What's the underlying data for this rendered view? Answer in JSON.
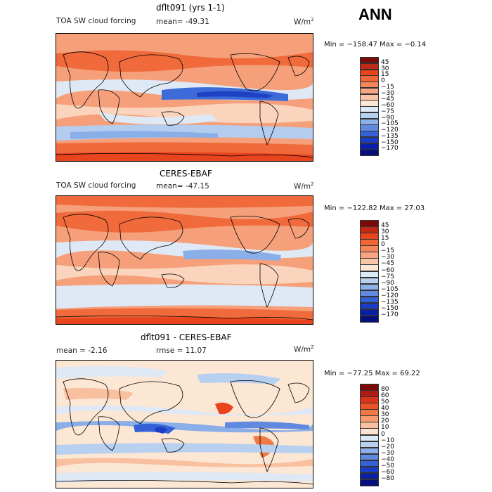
{
  "header": {
    "season": "ANN"
  },
  "panels": [
    {
      "id": "model",
      "title": "dflt091 (yrs 1-1)",
      "left_label": "TOA SW cloud forcing",
      "stat1": "mean= -49.31",
      "units": "W/m",
      "units_sup": "2",
      "minmax": "Min = −158.47 Max =  −0.14",
      "colorbar": {
        "labels": [
          "45",
          "30",
          "15",
          "0",
          "−15",
          "−30",
          "−45",
          "−60",
          "−75",
          "−90",
          "−105",
          "−120",
          "−135",
          "−150",
          "−170"
        ],
        "colors": [
          "#7a0a0a",
          "#c02a14",
          "#e8441e",
          "#f06636",
          "#f5865a",
          "#f7a582",
          "#fac4a7",
          "#fce6d4",
          "#dce9f6",
          "#b8d0f0",
          "#8cb0ea",
          "#5f8ae0",
          "#3462d6",
          "#1a3dc6",
          "#0a1fa8",
          "#06107a"
        ]
      }
    },
    {
      "id": "obs",
      "title": "CERES-EBAF",
      "left_label": "TOA SW cloud forcing",
      "stat1": "mean= -47.15",
      "units": "W/m",
      "units_sup": "2",
      "minmax": "Min = −122.82 Max =  27.03",
      "colorbar": {
        "labels": [
          "45",
          "30",
          "15",
          "0",
          "−15",
          "−30",
          "−45",
          "−60",
          "−75",
          "−90",
          "−105",
          "−120",
          "−135",
          "−150",
          "−170"
        ],
        "colors": [
          "#7a0a0a",
          "#c02a14",
          "#e8441e",
          "#f06636",
          "#f5865a",
          "#f7a582",
          "#fac4a7",
          "#fce6d4",
          "#dce9f6",
          "#b8d0f0",
          "#8cb0ea",
          "#5f8ae0",
          "#3462d6",
          "#1a3dc6",
          "#0a1fa8",
          "#06107a"
        ]
      }
    },
    {
      "id": "diff",
      "title": "dflt091 - CERES-EBAF",
      "left_label": "mean =   -2.16",
      "stat1": "rmse =   11.07",
      "units": "W/m",
      "units_sup": "2",
      "minmax": "Min = −77.25 Max =  69.22",
      "colorbar": {
        "labels": [
          "80",
          "60",
          "50",
          "40",
          "30",
          "20",
          "10",
          "0",
          "−10",
          "−20",
          "−30",
          "−40",
          "−50",
          "−60",
          "−80"
        ],
        "colors": [
          "#7a0a0a",
          "#b01c14",
          "#d8341c",
          "#ec5228",
          "#f27844",
          "#f59c70",
          "#f9c0a0",
          "#fde4d2",
          "#dce9f6",
          "#b8d0f0",
          "#8cb0ea",
          "#5f8ae0",
          "#3462d6",
          "#1a3dc6",
          "#0a1fa8",
          "#06107a"
        ]
      }
    }
  ],
  "chart_data": [
    {
      "type": "heatmap",
      "title": "dflt091 (yrs 1-1)",
      "subtitle": "TOA SW cloud forcing",
      "variable": "TOA SW cloud forcing",
      "units": "W/m2",
      "mean": -49.31,
      "min": -158.47,
      "max": -0.14,
      "contour_levels": [
        45,
        30,
        15,
        0,
        -15,
        -30,
        -45,
        -60,
        -75,
        -90,
        -105,
        -120,
        -135,
        -150,
        -170
      ]
    },
    {
      "type": "heatmap",
      "title": "CERES-EBAF",
      "subtitle": "TOA SW cloud forcing",
      "variable": "TOA SW cloud forcing",
      "units": "W/m2",
      "mean": -47.15,
      "min": -122.82,
      "max": 27.03,
      "contour_levels": [
        45,
        30,
        15,
        0,
        -15,
        -30,
        -45,
        -60,
        -75,
        -90,
        -105,
        -120,
        -135,
        -150,
        -170
      ]
    },
    {
      "type": "heatmap",
      "title": "dflt091 - CERES-EBAF",
      "units": "W/m2",
      "mean": -2.16,
      "rmse": 11.07,
      "min": -77.25,
      "max": 69.22,
      "contour_levels": [
        80,
        60,
        50,
        40,
        30,
        20,
        10,
        0,
        -10,
        -20,
        -30,
        -40,
        -50,
        -60,
        -80
      ]
    }
  ]
}
